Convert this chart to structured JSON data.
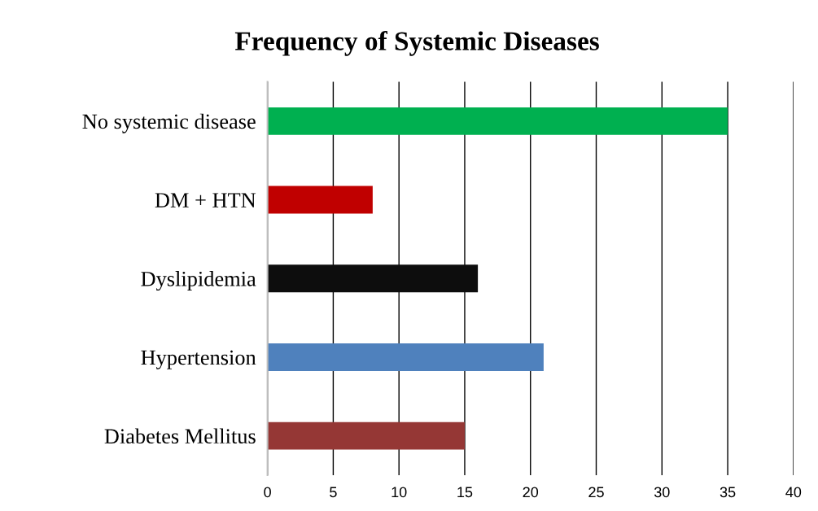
{
  "chart_data": {
    "type": "bar",
    "orientation": "horizontal",
    "title": "Frequency of Systemic Diseases",
    "categories": [
      "No systemic disease",
      "DM + HTN",
      "Dyslipidemia",
      "Hypertension",
      "Diabetes Mellitus"
    ],
    "values": [
      35,
      8,
      16,
      21,
      15
    ],
    "colors": [
      "#00b050",
      "#c00000",
      "#0d0d0d",
      "#4f81bd",
      "#953735"
    ],
    "xlim": [
      0,
      40
    ],
    "xticks": [
      0,
      5,
      10,
      15,
      20,
      25,
      30,
      35,
      40
    ],
    "grid": "x"
  }
}
